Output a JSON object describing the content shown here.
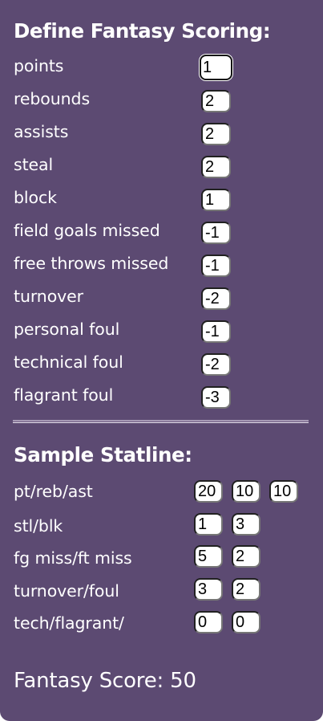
{
  "scoring": {
    "title": "Define Fantasy Scoring:",
    "rows": [
      {
        "label": "points",
        "value": "1"
      },
      {
        "label": "rebounds",
        "value": "2"
      },
      {
        "label": "assists",
        "value": "2"
      },
      {
        "label": "steal",
        "value": "2"
      },
      {
        "label": "block",
        "value": "1"
      },
      {
        "label": "field goals missed",
        "value": "-1"
      },
      {
        "label": "free throws missed",
        "value": "-1"
      },
      {
        "label": "turnover",
        "value": "-2"
      },
      {
        "label": "personal foul",
        "value": "-1"
      },
      {
        "label": "technical foul",
        "value": "-2"
      },
      {
        "label": "flagrant foul",
        "value": "-3"
      }
    ]
  },
  "sample": {
    "title": "Sample Statline:",
    "rows": [
      {
        "label": "pt/reb/ast",
        "values": [
          "20",
          "10",
          "10"
        ]
      },
      {
        "label": "stl/blk",
        "values": [
          "1",
          "3"
        ]
      },
      {
        "label": "fg miss/ft miss",
        "values": [
          "5",
          "2"
        ]
      },
      {
        "label": "turnover/foul",
        "values": [
          "3",
          "2"
        ]
      },
      {
        "label": "tech/flagrant/",
        "values": [
          "0",
          "0"
        ]
      }
    ]
  },
  "result": {
    "text": "Fantasy Score: 50"
  }
}
